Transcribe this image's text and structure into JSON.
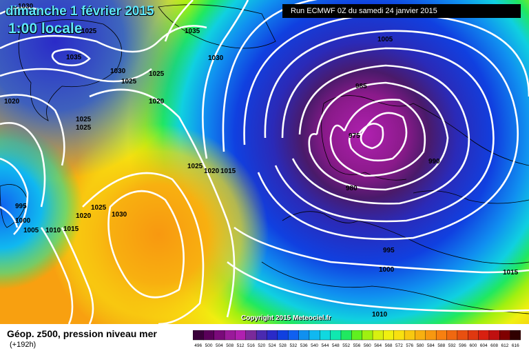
{
  "header": {
    "date": "dimanche 1 février 2015",
    "time": "1:00 locale",
    "run": "Run ECMWF 0Z du samedi 24 janvier 2015"
  },
  "footer": {
    "field": "Géop. z500, pression niveau mer",
    "step": "(+192h)",
    "copyright": "Copyright 2015 Meteociel.fr"
  },
  "isobar_labels": [
    "1030",
    "1035",
    "1030",
    "1025",
    "1035",
    "1030",
    "1025",
    "1025",
    "1020",
    "1020",
    "1025",
    "1025",
    "1005",
    "985",
    "975",
    "990",
    "980",
    "1025",
    "1020",
    "1015",
    "995",
    "1000",
    "1005",
    "1010",
    "1015",
    "1020",
    "1025",
    "1030",
    "995",
    "1000",
    "1015",
    "1010"
  ],
  "legend": {
    "values": [
      "496",
      "500",
      "504",
      "508",
      "512",
      "516",
      "520",
      "524",
      "528",
      "532",
      "536",
      "540",
      "544",
      "548",
      "552",
      "556",
      "560",
      "564",
      "568",
      "572",
      "576",
      "580",
      "584",
      "588",
      "592",
      "596",
      "600",
      "604",
      "608",
      "612",
      "616"
    ],
    "colors": [
      "#3a003a",
      "#5a005a",
      "#7a0a7a",
      "#9a1a9a",
      "#b020b0",
      "#7a2a9a",
      "#4a2ab0",
      "#2a2ac8",
      "#1040e0",
      "#1060f0",
      "#1090f0",
      "#10b8f0",
      "#10d8e0",
      "#10e8b0",
      "#20e860",
      "#60f020",
      "#a0f010",
      "#d8f010",
      "#f0f010",
      "#f8e010",
      "#f8c810",
      "#f8b010",
      "#f89810",
      "#f88010",
      "#f06810",
      "#e85010",
      "#e03810",
      "#d82010",
      "#c01010",
      "#800000",
      "#300000"
    ]
  }
}
